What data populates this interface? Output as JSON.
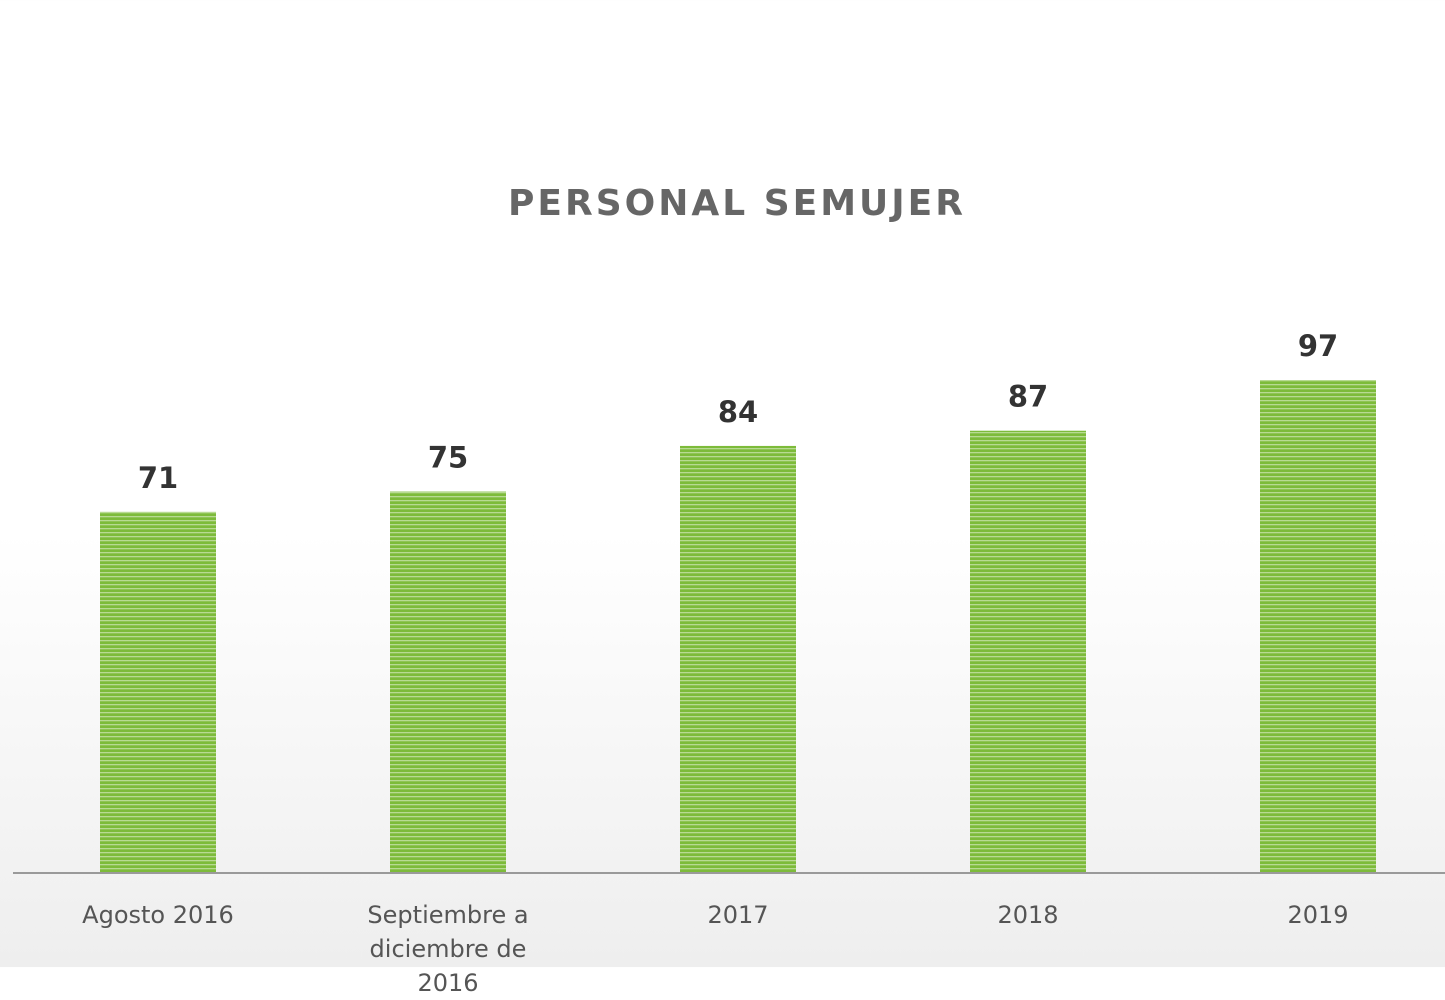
{
  "chart_data": {
    "type": "bar",
    "title": "PERSONAL SEMUJER",
    "categories": [
      "Agosto 2016",
      "Septiembre a diciembre de 2016",
      "2017",
      "2018",
      "2019"
    ],
    "values": [
      71,
      75,
      84,
      87,
      97
    ],
    "color": "#7dbb3a"
  }
}
